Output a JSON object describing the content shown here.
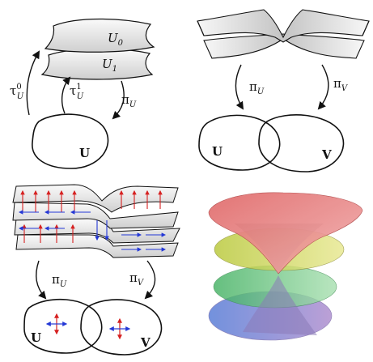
{
  "panel_tl": {
    "sheet_top": {
      "label": "U",
      "sub": "0"
    },
    "sheet_bottom": {
      "label": "U",
      "sub": "1"
    },
    "tau0": {
      "label": "τ",
      "sup": "0",
      "sub": "U"
    },
    "tau1": {
      "label": "τ",
      "sup": "1",
      "sub": "U"
    },
    "proj": {
      "label": "π",
      "sub": "U"
    },
    "base": {
      "label": "U"
    }
  },
  "panel_tr": {
    "proj_u": {
      "label": "π",
      "sub": "U"
    },
    "proj_v": {
      "label": "π",
      "sub": "V"
    },
    "base_u": {
      "label": "U"
    },
    "base_v": {
      "label": "V"
    }
  },
  "panel_bl": {
    "proj_u": {
      "label": "π",
      "sub": "U"
    },
    "proj_v": {
      "label": "π",
      "sub": "V"
    },
    "base_u": {
      "label": "U"
    },
    "base_v": {
      "label": "V"
    }
  },
  "colors": {
    "outline": "#111111",
    "sheet_fill": "#f2f2f2",
    "sheet_shade": "#cfcfcf",
    "field_red": "#d62020",
    "field_blue": "#2438d6"
  }
}
